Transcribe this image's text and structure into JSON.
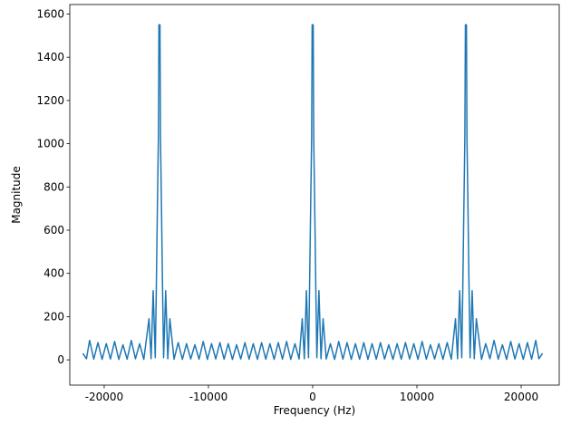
{
  "chart_data": {
    "type": "line",
    "xlabel": "Frequency (Hz)",
    "ylabel": "Magnitude",
    "color": "#1f77b4",
    "x": [
      -22050,
      -21700,
      -21400,
      -21000,
      -20600,
      -20200,
      -19800,
      -19400,
      -19000,
      -18600,
      -18200,
      -17800,
      -17400,
      -17000,
      -16600,
      -16200,
      -15700,
      -15500,
      -15300,
      -15100,
      -15000,
      -14900,
      -14800,
      -14750,
      -14700,
      -14650,
      -14600,
      -14500,
      -14400,
      -14300,
      -14100,
      -13900,
      -13700,
      -13300,
      -12900,
      -12500,
      -12100,
      -11700,
      -11300,
      -10900,
      -10500,
      -10100,
      -9700,
      -9300,
      -8900,
      -8500,
      -8100,
      -7700,
      -7300,
      -6900,
      -6500,
      -6100,
      -5700,
      -5300,
      -4900,
      -4500,
      -4100,
      -3700,
      -3300,
      -2900,
      -2500,
      -2100,
      -1700,
      -1300,
      -1000,
      -800,
      -600,
      -400,
      -300,
      -200,
      -100,
      -50,
      0,
      50,
      100,
      200,
      300,
      400,
      600,
      800,
      1000,
      1300,
      1700,
      2100,
      2500,
      2900,
      3300,
      3700,
      4100,
      4500,
      4900,
      5300,
      5700,
      6100,
      6500,
      6900,
      7300,
      7700,
      8100,
      8500,
      8900,
      9300,
      9700,
      10100,
      10500,
      10900,
      11300,
      11700,
      12100,
      12500,
      12900,
      13300,
      13700,
      13900,
      14100,
      14300,
      14400,
      14500,
      14600,
      14650,
      14700,
      14750,
      14800,
      14900,
      15000,
      15100,
      15300,
      15500,
      15700,
      16200,
      16600,
      17000,
      17400,
      17800,
      18200,
      18600,
      19000,
      19400,
      19800,
      20200,
      20600,
      21000,
      21400,
      21700,
      22050
    ],
    "values": [
      30,
      5,
      90,
      3,
      80,
      2,
      75,
      4,
      85,
      2,
      70,
      3,
      90,
      5,
      75,
      2,
      190,
      5,
      320,
      10,
      330,
      690,
      1030,
      1550,
      1550,
      1550,
      1030,
      690,
      330,
      10,
      320,
      5,
      190,
      3,
      80,
      2,
      75,
      4,
      70,
      3,
      85,
      2,
      75,
      4,
      80,
      3,
      75,
      2,
      70,
      4,
      80,
      3,
      75,
      2,
      80,
      3,
      75,
      2,
      80,
      3,
      85,
      2,
      75,
      4,
      190,
      5,
      320,
      10,
      330,
      690,
      1030,
      1550,
      1550,
      1550,
      1030,
      690,
      330,
      10,
      320,
      5,
      190,
      4,
      75,
      2,
      85,
      3,
      80,
      2,
      75,
      3,
      80,
      2,
      75,
      3,
      80,
      4,
      70,
      2,
      75,
      3,
      80,
      4,
      75,
      2,
      85,
      3,
      70,
      4,
      75,
      2,
      80,
      3,
      190,
      5,
      320,
      10,
      330,
      690,
      1030,
      1550,
      1550,
      1550,
      1030,
      690,
      330,
      10,
      320,
      5,
      190,
      2,
      75,
      5,
      90,
      3,
      70,
      2,
      85,
      4,
      75,
      2,
      80,
      3,
      90,
      5,
      30
    ],
    "xlim": [
      -23300,
      23650
    ],
    "ylim": [
      -117,
      1644
    ],
    "xticks": [
      -20000,
      -10000,
      0,
      10000,
      20000
    ],
    "yticks": [
      0,
      200,
      400,
      600,
      800,
      1000,
      1200,
      1400,
      1600
    ]
  }
}
